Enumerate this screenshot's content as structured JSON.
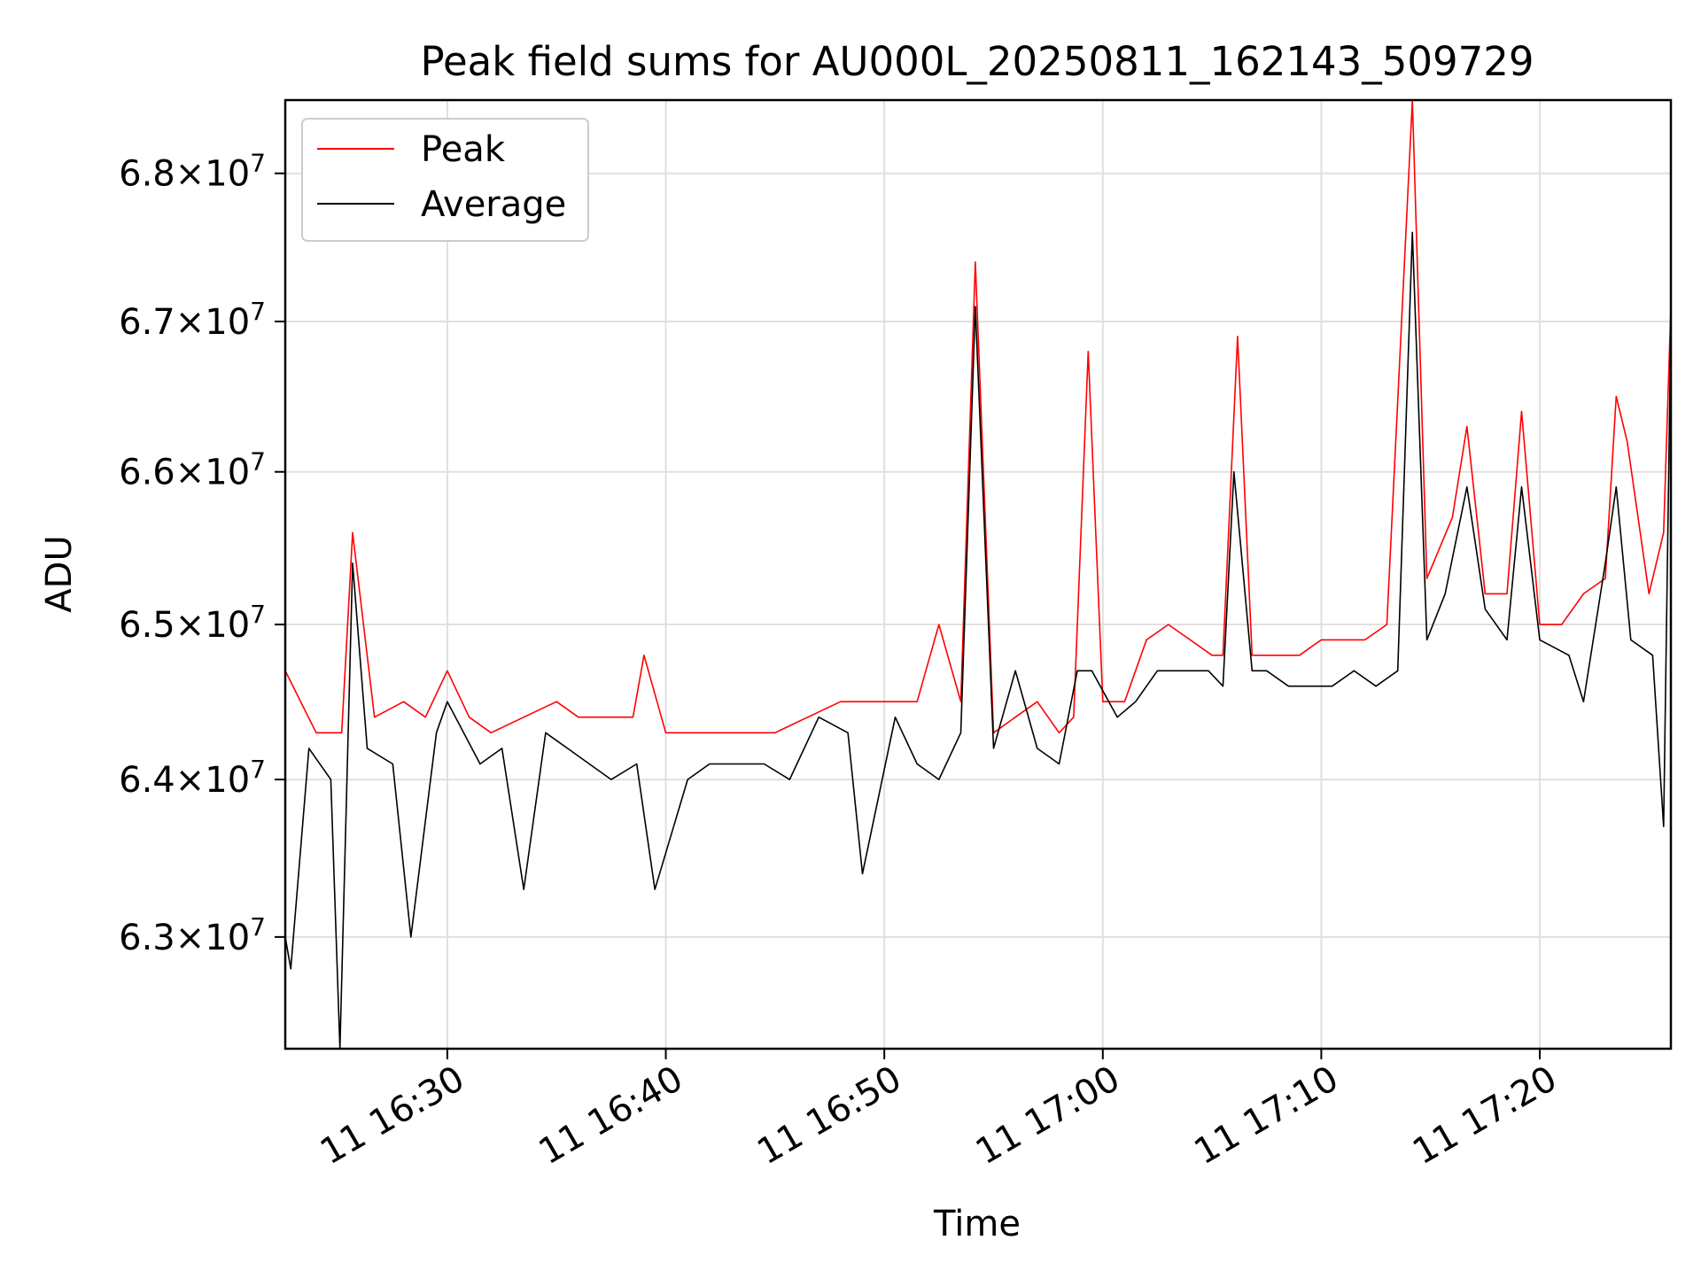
{
  "chart_data": {
    "type": "line",
    "title": "Peak field sums for AU000L_20250811_162143_509729",
    "xlabel": "Time",
    "ylabel": "ADU",
    "x_ticks": [
      {
        "value": "2025-08-11 16:30",
        "label": "11 16:30"
      },
      {
        "value": "2025-08-11 16:40",
        "label": "11 16:40"
      },
      {
        "value": "2025-08-11 16:50",
        "label": "11 16:50"
      },
      {
        "value": "2025-08-11 17:00",
        "label": "11 17:00"
      },
      {
        "value": "2025-08-11 17:10",
        "label": "11 17:10"
      },
      {
        "value": "2025-08-11 17:20",
        "label": "11 17:20"
      }
    ],
    "xlim": [
      "2025-08-11 16:22:35",
      "2025-08-11 17:26:00"
    ],
    "y_scale": "log",
    "ylim": [
      62300000,
      68500000
    ],
    "y_ticks": [
      {
        "value": 63000000,
        "base": "6.3",
        "exp": "7"
      },
      {
        "value": 64000000,
        "base": "6.4",
        "exp": "7"
      },
      {
        "value": 65000000,
        "base": "6.5",
        "exp": "7"
      },
      {
        "value": 66000000,
        "base": "6.6",
        "exp": "7"
      },
      {
        "value": 67000000,
        "base": "6.7",
        "exp": "7"
      },
      {
        "value": 68000000,
        "base": "6.8",
        "exp": "7"
      }
    ],
    "grid": true,
    "legend_position": "top-left",
    "series": [
      {
        "name": "Peak",
        "color": "#ff0000",
        "x": [
          "2025-08-11 16:22:35",
          "2025-08-11 16:24:00",
          "2025-08-11 16:25:10",
          "2025-08-11 16:25:40",
          "2025-08-11 16:26:40",
          "2025-08-11 16:28:00",
          "2025-08-11 16:29:00",
          "2025-08-11 16:30:00",
          "2025-08-11 16:31:00",
          "2025-08-11 16:32:00",
          "2025-08-11 16:33:30",
          "2025-08-11 16:35:00",
          "2025-08-11 16:36:00",
          "2025-08-11 16:38:30",
          "2025-08-11 16:39:00",
          "2025-08-11 16:40:00",
          "2025-08-11 16:41:30",
          "2025-08-11 16:43:00",
          "2025-08-11 16:44:00",
          "2025-08-11 16:45:00",
          "2025-08-11 16:46:30",
          "2025-08-11 16:48:00",
          "2025-08-11 16:50:00",
          "2025-08-11 16:51:30",
          "2025-08-11 16:52:30",
          "2025-08-11 16:53:30",
          "2025-08-11 16:54:10",
          "2025-08-11 16:55:00",
          "2025-08-11 16:56:00",
          "2025-08-11 16:57:00",
          "2025-08-11 16:58:00",
          "2025-08-11 16:58:40",
          "2025-08-11 16:59:20",
          "2025-08-11 17:00:00",
          "2025-08-11 17:01:00",
          "2025-08-11 17:02:00",
          "2025-08-11 17:03:00",
          "2025-08-11 17:04:00",
          "2025-08-11 17:05:00",
          "2025-08-11 17:05:30",
          "2025-08-11 17:06:10",
          "2025-08-11 17:06:50",
          "2025-08-11 17:08:00",
          "2025-08-11 17:09:00",
          "2025-08-11 17:10:00",
          "2025-08-11 17:11:00",
          "2025-08-11 17:12:00",
          "2025-08-11 17:13:00",
          "2025-08-11 17:14:10",
          "2025-08-11 17:14:50",
          "2025-08-11 17:16:00",
          "2025-08-11 17:16:40",
          "2025-08-11 17:17:30",
          "2025-08-11 17:18:30",
          "2025-08-11 17:19:10",
          "2025-08-11 17:20:00",
          "2025-08-11 17:21:00",
          "2025-08-11 17:22:00",
          "2025-08-11 17:23:00",
          "2025-08-11 17:23:30",
          "2025-08-11 17:24:00",
          "2025-08-11 17:25:00",
          "2025-08-11 17:25:40",
          "2025-08-11 17:26:00"
        ],
        "y": [
          64700000,
          64300000,
          64300000,
          65600000,
          64400000,
          64500000,
          64400000,
          64700000,
          64400000,
          64300000,
          64400000,
          64500000,
          64400000,
          64400000,
          64800000,
          64300000,
          64300000,
          64300000,
          64300000,
          64300000,
          64400000,
          64500000,
          64500000,
          64500000,
          65000000,
          64500000,
          67400000,
          64300000,
          64400000,
          64500000,
          64300000,
          64400000,
          66800000,
          64500000,
          64500000,
          64900000,
          65000000,
          64900000,
          64800000,
          64800000,
          66900000,
          64800000,
          64800000,
          64800000,
          64900000,
          64900000,
          64900000,
          65000000,
          68500000,
          65300000,
          65700000,
          66300000,
          65200000,
          65200000,
          66400000,
          65000000,
          65000000,
          65200000,
          65300000,
          66500000,
          66200000,
          65200000,
          65600000,
          67100000
        ]
      },
      {
        "name": "Average",
        "color": "#000000",
        "x": [
          "2025-08-11 16:22:35",
          "2025-08-11 16:22:50",
          "2025-08-11 16:23:40",
          "2025-08-11 16:24:40",
          "2025-08-11 16:25:05",
          "2025-08-11 16:25:40",
          "2025-08-11 16:26:20",
          "2025-08-11 16:27:30",
          "2025-08-11 16:28:20",
          "2025-08-11 16:29:30",
          "2025-08-11 16:30:00",
          "2025-08-11 16:31:30",
          "2025-08-11 16:32:30",
          "2025-08-11 16:33:30",
          "2025-08-11 16:34:30",
          "2025-08-11 16:35:30",
          "2025-08-11 16:36:30",
          "2025-08-11 16:37:30",
          "2025-08-11 16:38:40",
          "2025-08-11 16:39:30",
          "2025-08-11 16:41:00",
          "2025-08-11 16:42:00",
          "2025-08-11 16:43:30",
          "2025-08-11 16:44:30",
          "2025-08-11 16:45:40",
          "2025-08-11 16:47:00",
          "2025-08-11 16:48:20",
          "2025-08-11 16:49:00",
          "2025-08-11 16:50:30",
          "2025-08-11 16:51:30",
          "2025-08-11 16:52:30",
          "2025-08-11 16:53:30",
          "2025-08-11 16:54:10",
          "2025-08-11 16:55:00",
          "2025-08-11 16:56:00",
          "2025-08-11 16:57:00",
          "2025-08-11 16:58:00",
          "2025-08-11 16:58:50",
          "2025-08-11 16:59:30",
          "2025-08-11 17:00:40",
          "2025-08-11 17:01:30",
          "2025-08-11 17:02:30",
          "2025-08-11 17:03:30",
          "2025-08-11 17:04:50",
          "2025-08-11 17:05:30",
          "2025-08-11 17:06:00",
          "2025-08-11 17:06:50",
          "2025-08-11 17:07:30",
          "2025-08-11 17:08:30",
          "2025-08-11 17:09:30",
          "2025-08-11 17:10:30",
          "2025-08-11 17:11:30",
          "2025-08-11 17:12:30",
          "2025-08-11 17:13:30",
          "2025-08-11 17:14:10",
          "2025-08-11 17:14:50",
          "2025-08-11 17:15:40",
          "2025-08-11 17:16:40",
          "2025-08-11 17:17:30",
          "2025-08-11 17:18:30",
          "2025-08-11 17:19:10",
          "2025-08-11 17:20:00",
          "2025-08-11 17:21:20",
          "2025-08-11 17:22:00",
          "2025-08-11 17:23:00",
          "2025-08-11 17:23:30",
          "2025-08-11 17:24:10",
          "2025-08-11 17:25:10",
          "2025-08-11 17:25:40",
          "2025-08-11 17:26:00"
        ],
        "y": [
          63000000,
          62800000,
          64200000,
          64000000,
          62300000,
          65400000,
          64200000,
          64100000,
          63000000,
          64300000,
          64500000,
          64100000,
          64200000,
          63300000,
          64300000,
          64200000,
          64100000,
          64000000,
          64100000,
          63300000,
          64000000,
          64100000,
          64100000,
          64100000,
          64000000,
          64400000,
          64300000,
          63400000,
          64400000,
          64100000,
          64000000,
          64300000,
          67100000,
          64200000,
          64700000,
          64200000,
          64100000,
          64700000,
          64700000,
          64400000,
          64500000,
          64700000,
          64700000,
          64700000,
          64600000,
          66000000,
          64700000,
          64700000,
          64600000,
          64600000,
          64600000,
          64700000,
          64600000,
          64700000,
          67600000,
          64900000,
          65200000,
          65900000,
          65100000,
          64900000,
          65900000,
          64900000,
          64800000,
          64500000,
          65400000,
          65900000,
          64900000,
          64800000,
          63700000,
          67000000
        ]
      }
    ]
  }
}
